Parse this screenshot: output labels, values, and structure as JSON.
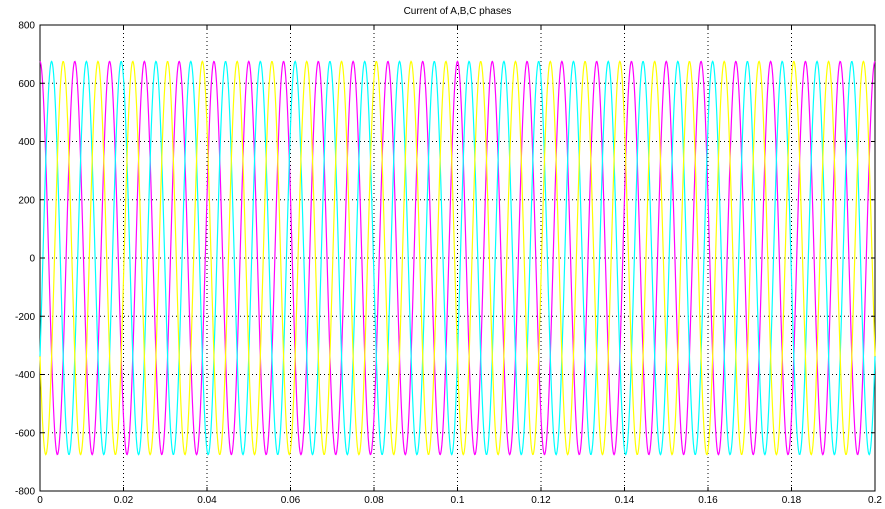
{
  "chart_data": {
    "type": "line",
    "title": "Current of A,B,C phases",
    "xlabel": "",
    "ylabel": "",
    "xlim": [
      0,
      0.2
    ],
    "ylim": [
      -800,
      800
    ],
    "xticks": [
      0,
      0.02,
      0.04,
      0.06,
      0.08,
      0.1,
      0.12,
      0.14,
      0.16,
      0.18,
      0.2
    ],
    "xtick_labels": [
      "0",
      "0.02",
      "0.04",
      "0.06",
      "0.08",
      "0.1",
      "0.12",
      "0.14",
      "0.16",
      "0.18",
      "0.2"
    ],
    "yticks": [
      800,
      600,
      400,
      200,
      0,
      -200,
      -400,
      -600,
      -800
    ],
    "ytick_labels": [
      "800",
      "600",
      "400",
      "200",
      "0",
      "-200",
      "-400",
      "-600",
      "-800"
    ],
    "grid": true,
    "grid_style": "dotted",
    "frequency_hz": 120,
    "amplitude": 675,
    "series": [
      {
        "color": "#ff00ff",
        "phase_deg": 90
      },
      {
        "color": "#00ffff",
        "phase_deg": -30
      },
      {
        "color": "#ffff00",
        "phase_deg": 210
      }
    ]
  }
}
